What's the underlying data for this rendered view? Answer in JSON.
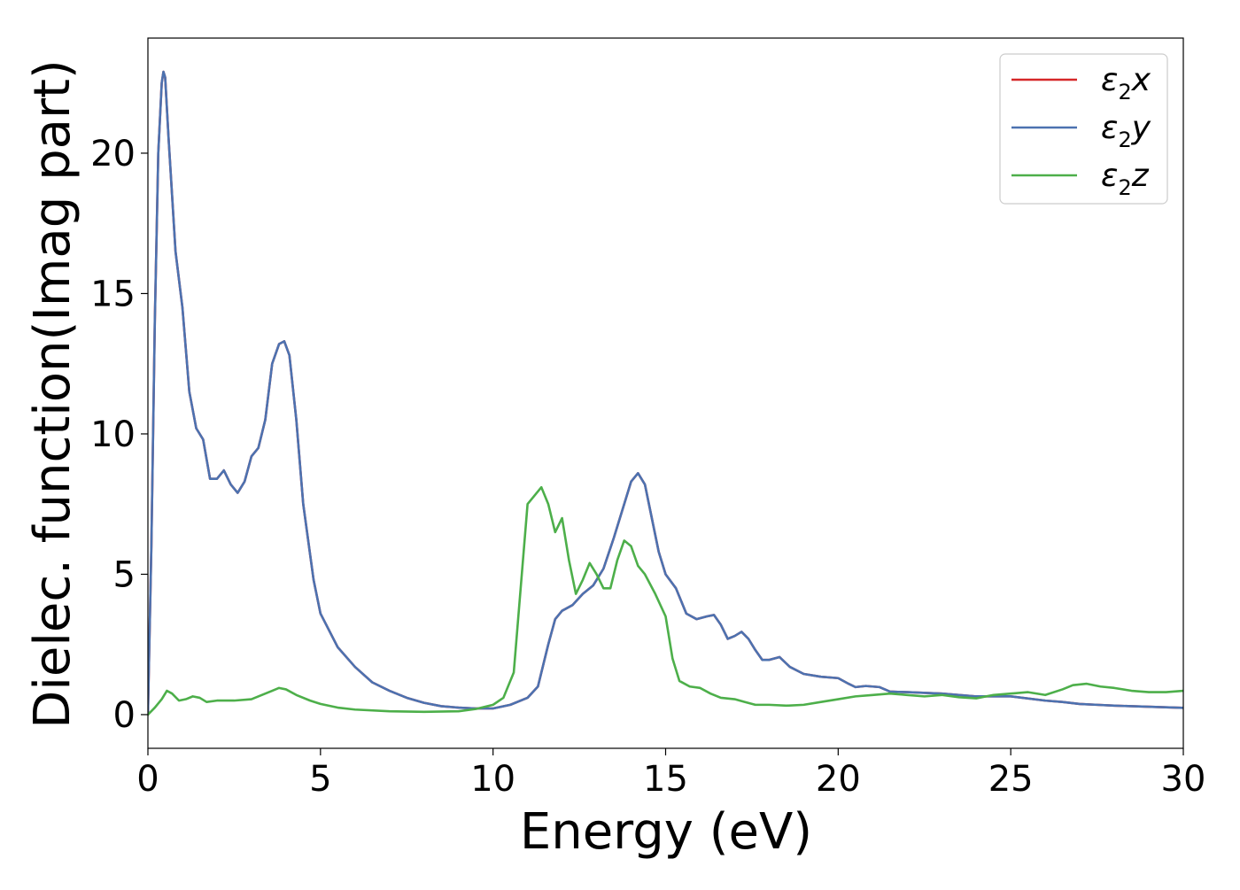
{
  "chart_data": {
    "type": "line",
    "title": "",
    "xlabel": "Energy (eV)",
    "ylabel": "Dielec. function(Imag part)",
    "xlim": [
      0,
      30
    ],
    "ylim": [
      -1.2,
      24.1
    ],
    "xticks": [
      0,
      5,
      10,
      15,
      20,
      25,
      30
    ],
    "yticks": [
      0,
      5,
      10,
      15,
      20
    ],
    "grid": false,
    "legend": "top-right",
    "series": [
      {
        "name": "ε2x",
        "label_main": "ε",
        "label_sub": "2",
        "label_axis": "x",
        "color": "#d62728",
        "x": [
          0.0,
          0.1,
          0.2,
          0.3,
          0.4,
          0.45,
          0.5,
          0.6,
          0.8,
          1.0,
          1.2,
          1.4,
          1.6,
          1.8,
          2.0,
          2.2,
          2.4,
          2.6,
          2.8,
          3.0,
          3.2,
          3.4,
          3.6,
          3.8,
          3.95,
          4.1,
          4.3,
          4.5,
          4.8,
          5.0,
          5.5,
          6.0,
          6.5,
          7.0,
          7.5,
          8.0,
          8.5,
          9.0,
          9.5,
          10.0,
          10.5,
          11.0,
          11.3,
          11.6,
          11.8,
          12.0,
          12.3,
          12.6,
          12.9,
          13.2,
          13.5,
          13.8,
          14.0,
          14.2,
          14.4,
          14.6,
          14.8,
          15.0,
          15.3,
          15.6,
          15.9,
          16.2,
          16.4,
          16.6,
          16.8,
          17.0,
          17.2,
          17.4,
          17.6,
          17.8,
          18.0,
          18.3,
          18.6,
          19.0,
          19.5,
          20.0,
          20.3,
          20.5,
          20.8,
          21.2,
          21.5,
          22.0,
          23.0,
          24.0,
          25.0,
          26.0,
          26.5,
          27.0,
          27.5,
          28.0,
          29.0,
          30.0
        ],
        "y": [
          0.0,
          6.0,
          14.0,
          20.0,
          22.5,
          22.9,
          22.7,
          20.5,
          16.5,
          14.5,
          11.5,
          10.2,
          9.8,
          8.4,
          8.4,
          8.7,
          8.2,
          7.9,
          8.3,
          9.2,
          9.5,
          10.5,
          12.5,
          13.2,
          13.3,
          12.8,
          10.5,
          7.5,
          4.8,
          3.6,
          2.4,
          1.7,
          1.15,
          0.85,
          0.6,
          0.42,
          0.3,
          0.25,
          0.22,
          0.22,
          0.35,
          0.6,
          1.0,
          2.5,
          3.4,
          3.7,
          3.9,
          4.3,
          4.6,
          5.2,
          6.3,
          7.5,
          8.3,
          8.6,
          8.2,
          7.0,
          5.8,
          5.0,
          4.5,
          3.6,
          3.4,
          3.5,
          3.55,
          3.2,
          2.7,
          2.8,
          2.95,
          2.7,
          2.3,
          1.95,
          1.95,
          2.05,
          1.7,
          1.45,
          1.35,
          1.3,
          1.1,
          0.98,
          1.02,
          0.98,
          0.82,
          0.8,
          0.75,
          0.65,
          0.65,
          0.5,
          0.45,
          0.38,
          0.35,
          0.32,
          0.28,
          0.24
        ]
      },
      {
        "name": "ε2y",
        "label_main": "ε",
        "label_sub": "2",
        "label_axis": "y",
        "color": "#4c72b0",
        "x": [
          0.0,
          0.1,
          0.2,
          0.3,
          0.4,
          0.45,
          0.5,
          0.6,
          0.8,
          1.0,
          1.2,
          1.4,
          1.6,
          1.8,
          2.0,
          2.2,
          2.4,
          2.6,
          2.8,
          3.0,
          3.2,
          3.4,
          3.6,
          3.8,
          3.95,
          4.1,
          4.3,
          4.5,
          4.8,
          5.0,
          5.5,
          6.0,
          6.5,
          7.0,
          7.5,
          8.0,
          8.5,
          9.0,
          9.5,
          10.0,
          10.5,
          11.0,
          11.3,
          11.6,
          11.8,
          12.0,
          12.3,
          12.6,
          12.9,
          13.2,
          13.5,
          13.8,
          14.0,
          14.2,
          14.4,
          14.6,
          14.8,
          15.0,
          15.3,
          15.6,
          15.9,
          16.2,
          16.4,
          16.6,
          16.8,
          17.0,
          17.2,
          17.4,
          17.6,
          17.8,
          18.0,
          18.3,
          18.6,
          19.0,
          19.5,
          20.0,
          20.3,
          20.5,
          20.8,
          21.2,
          21.5,
          22.0,
          23.0,
          24.0,
          25.0,
          26.0,
          26.5,
          27.0,
          27.5,
          28.0,
          29.0,
          30.0
        ],
        "y": [
          0.0,
          6.0,
          14.0,
          20.0,
          22.5,
          22.9,
          22.7,
          20.5,
          16.5,
          14.5,
          11.5,
          10.2,
          9.8,
          8.4,
          8.4,
          8.7,
          8.2,
          7.9,
          8.3,
          9.2,
          9.5,
          10.5,
          12.5,
          13.2,
          13.3,
          12.8,
          10.5,
          7.5,
          4.8,
          3.6,
          2.4,
          1.7,
          1.15,
          0.85,
          0.6,
          0.42,
          0.3,
          0.25,
          0.22,
          0.22,
          0.35,
          0.6,
          1.0,
          2.5,
          3.4,
          3.7,
          3.9,
          4.3,
          4.6,
          5.2,
          6.3,
          7.5,
          8.3,
          8.6,
          8.2,
          7.0,
          5.8,
          5.0,
          4.5,
          3.6,
          3.4,
          3.5,
          3.55,
          3.2,
          2.7,
          2.8,
          2.95,
          2.7,
          2.3,
          1.95,
          1.95,
          2.05,
          1.7,
          1.45,
          1.35,
          1.3,
          1.1,
          0.98,
          1.02,
          0.98,
          0.82,
          0.8,
          0.75,
          0.65,
          0.65,
          0.5,
          0.45,
          0.38,
          0.35,
          0.32,
          0.28,
          0.24
        ]
      },
      {
        "name": "ε2z",
        "label_main": "ε",
        "label_sub": "2",
        "label_axis": "z",
        "color": "#4daf4a",
        "x": [
          0.0,
          0.2,
          0.4,
          0.55,
          0.7,
          0.9,
          1.1,
          1.3,
          1.5,
          1.7,
          2.0,
          2.5,
          3.0,
          3.3,
          3.6,
          3.8,
          4.0,
          4.3,
          4.7,
          5.0,
          5.5,
          6.0,
          7.0,
          8.0,
          9.0,
          9.5,
          10.0,
          10.3,
          10.6,
          10.8,
          11.0,
          11.2,
          11.4,
          11.6,
          11.8,
          12.0,
          12.2,
          12.4,
          12.6,
          12.8,
          13.0,
          13.2,
          13.4,
          13.6,
          13.8,
          14.0,
          14.2,
          14.4,
          14.7,
          15.0,
          15.2,
          15.4,
          15.7,
          16.0,
          16.3,
          16.6,
          17.0,
          17.3,
          17.6,
          18.0,
          18.5,
          19.0,
          19.5,
          20.0,
          20.5,
          21.0,
          21.5,
          22.0,
          22.5,
          23.0,
          23.5,
          24.0,
          24.5,
          25.0,
          25.5,
          26.0,
          26.5,
          26.8,
          27.2,
          27.6,
          28.0,
          28.5,
          29.0,
          29.5,
          30.0
        ],
        "y": [
          0.0,
          0.25,
          0.55,
          0.85,
          0.75,
          0.5,
          0.55,
          0.65,
          0.6,
          0.45,
          0.5,
          0.5,
          0.55,
          0.7,
          0.85,
          0.95,
          0.9,
          0.7,
          0.5,
          0.38,
          0.25,
          0.18,
          0.12,
          0.1,
          0.12,
          0.2,
          0.35,
          0.6,
          1.5,
          4.5,
          7.5,
          7.8,
          8.1,
          7.5,
          6.5,
          7.0,
          5.5,
          4.3,
          4.8,
          5.4,
          5.0,
          4.5,
          4.5,
          5.5,
          6.2,
          6.0,
          5.3,
          5.0,
          4.3,
          3.5,
          2.0,
          1.2,
          1.0,
          0.95,
          0.75,
          0.6,
          0.55,
          0.45,
          0.35,
          0.35,
          0.32,
          0.35,
          0.45,
          0.55,
          0.65,
          0.7,
          0.75,
          0.7,
          0.65,
          0.7,
          0.62,
          0.58,
          0.7,
          0.75,
          0.8,
          0.7,
          0.9,
          1.05,
          1.1,
          1.0,
          0.95,
          0.85,
          0.8,
          0.8,
          0.85
        ]
      }
    ]
  }
}
